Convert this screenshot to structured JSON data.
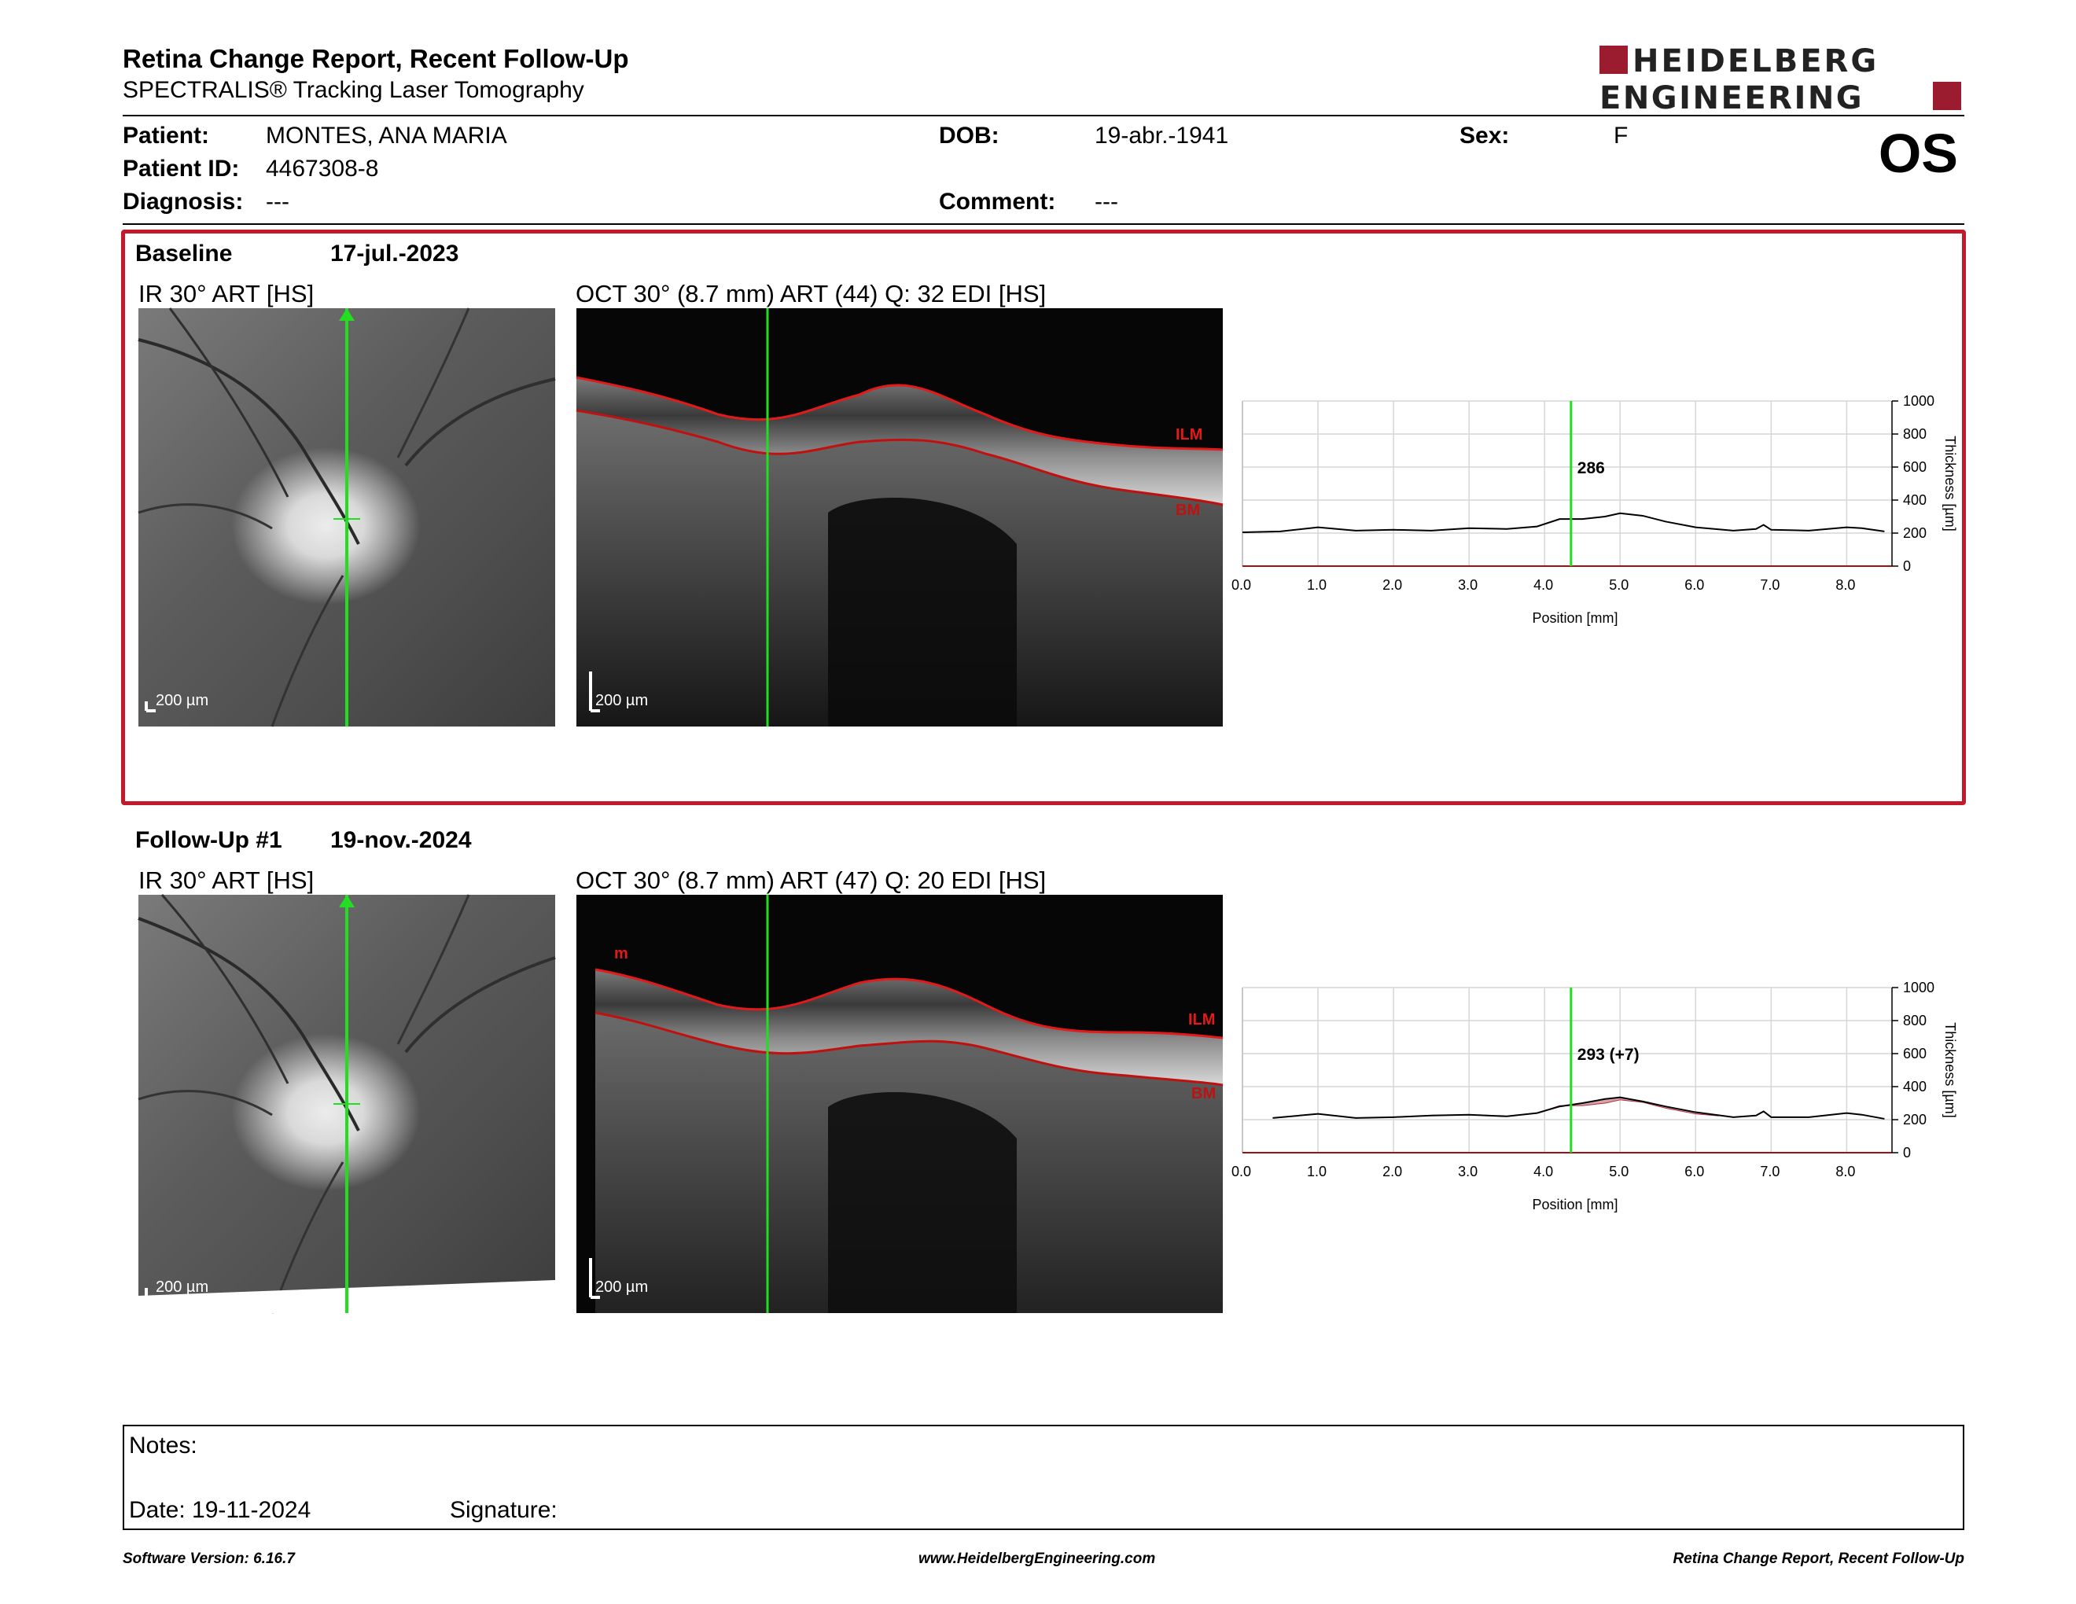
{
  "header": {
    "title": "Retina Change Report, Recent Follow-Up",
    "subtitle": "SPECTRALIS® Tracking Laser Tomography",
    "logo_line1": "HEIDELBERG",
    "logo_line2": "ENGINEERING"
  },
  "patient": {
    "patient_label": "Patient:",
    "patient_value": "MONTES, ANA MARIA",
    "id_label": "Patient ID:",
    "id_value": "4467308-8",
    "diagnosis_label": "Diagnosis:",
    "diagnosis_value": "---",
    "dob_label": "DOB:",
    "dob_value": "19-abr.-1941",
    "comment_label": "Comment:",
    "comment_value": "---",
    "sex_label": "Sex:",
    "sex_value": "F",
    "eye": "OS"
  },
  "baseline": {
    "label": "Baseline",
    "date": "17-jul.-2023",
    "ir_title": "IR 30° ART [HS]",
    "oct_title": "OCT 30° (8.7 mm) ART (44) Q: 32 EDI [HS]",
    "scale": "200 µm",
    "layer_top": "ILM",
    "layer_bottom": "BM"
  },
  "followup": {
    "label": "Follow-Up #1",
    "date": "19-nov.-2024",
    "ir_title": "IR 30° ART [HS]",
    "oct_title": "OCT 30° (8.7 mm) ART (47) Q: 20 EDI [HS]",
    "scale": "200 µm",
    "layer_mark": "m",
    "layer_top": "ILM",
    "layer_bottom": "BM"
  },
  "chart_data": [
    {
      "type": "line",
      "xlabel": "Position [mm]",
      "ylabel": "Thickness [µm]",
      "xlim": [
        0.0,
        8.6
      ],
      "ylim": [
        0,
        1000
      ],
      "x_ticks": [
        "0.0",
        "1.0",
        "2.0",
        "3.0",
        "4.0",
        "5.0",
        "6.0",
        "7.0",
        "8.0"
      ],
      "y_ticks": [
        "0",
        "200",
        "400",
        "600",
        "800",
        "1000"
      ],
      "grid": true,
      "cursor_x": 4.35,
      "cursor_label": "286",
      "series": [
        {
          "x": [
            0.0,
            0.5,
            1.0,
            1.5,
            2.0,
            2.5,
            3.0,
            3.5,
            3.9,
            4.2,
            4.5,
            4.8,
            5.0,
            5.3,
            5.6,
            6.0,
            6.5,
            6.8,
            6.9,
            7.0,
            7.5,
            8.0,
            8.2,
            8.5
          ],
          "y": [
            205,
            210,
            235,
            215,
            220,
            215,
            230,
            225,
            240,
            285,
            285,
            300,
            320,
            305,
            270,
            235,
            215,
            225,
            250,
            220,
            215,
            235,
            230,
            210
          ]
        }
      ]
    },
    {
      "type": "line",
      "xlabel": "Position [mm]",
      "ylabel": "Thickness [µm]",
      "xlim": [
        0.0,
        8.6
      ],
      "ylim": [
        0,
        1000
      ],
      "x_ticks": [
        "0.0",
        "1.0",
        "2.0",
        "3.0",
        "4.0",
        "5.0",
        "6.0",
        "7.0",
        "8.0"
      ],
      "y_ticks": [
        "0",
        "200",
        "400",
        "600",
        "800",
        "1000"
      ],
      "grid": true,
      "cursor_x": 4.35,
      "cursor_label": "293 (+7)",
      "series": [
        {
          "x": [
            0.4,
            1.0,
            1.5,
            2.0,
            2.5,
            3.0,
            3.5,
            3.9,
            4.2,
            4.5,
            4.8,
            5.0,
            5.3,
            5.6,
            6.0,
            6.5,
            6.8,
            6.9,
            7.0,
            7.5,
            8.0,
            8.2,
            8.5
          ],
          "y": [
            210,
            235,
            210,
            215,
            225,
            230,
            220,
            240,
            280,
            300,
            325,
            335,
            310,
            280,
            245,
            215,
            225,
            250,
            215,
            215,
            240,
            230,
            205
          ]
        }
      ]
    }
  ],
  "notes": {
    "notes_label": "Notes:",
    "date_text": "Date: 19-11-2024",
    "signature_label": "Signature:"
  },
  "footer": {
    "left": "Software Version: 6.16.7",
    "center": "www.HeidelbergEngineering.com",
    "right": "Retina Change Report, Recent Follow-Up"
  },
  "colors": {
    "accent_red": "#c21a2c",
    "logo_red": "#9b1c2e",
    "cursor_green": "#22dd22",
    "layer_red": "#cc1111"
  }
}
